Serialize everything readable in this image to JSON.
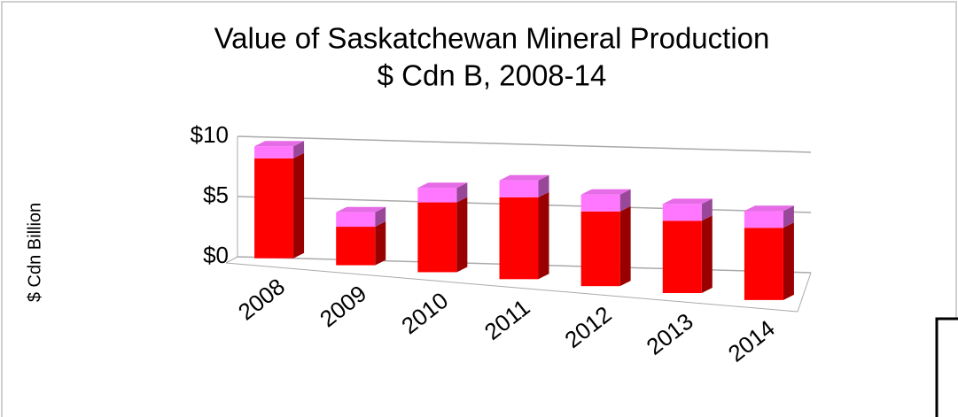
{
  "chart_data": {
    "type": "bar3d_stacked",
    "title": "Value of Saskatchewan Mineral Production",
    "subtitle": "$ Cdn B, 2008-14",
    "y_label": "$ Cdn Billion",
    "categories": [
      "2008",
      "2009",
      "2010",
      "2011",
      "2012",
      "2013",
      "2014"
    ],
    "series": [
      {
        "color": "#ff0000",
        "values": [
          8.3,
          3.2,
          5.8,
          6.8,
          6.2,
          6.0,
          6.0
        ]
      },
      {
        "color": "#ff77ff",
        "values": [
          1.0,
          1.2,
          1.2,
          1.4,
          1.4,
          1.4,
          1.4
        ]
      }
    ],
    "ylim": [
      0,
      10
    ],
    "yticks": [
      {
        "value": 0,
        "label": "$0"
      },
      {
        "value": 5,
        "label": "$5"
      },
      {
        "value": 10,
        "label": "$10"
      }
    ],
    "grid": true
  }
}
